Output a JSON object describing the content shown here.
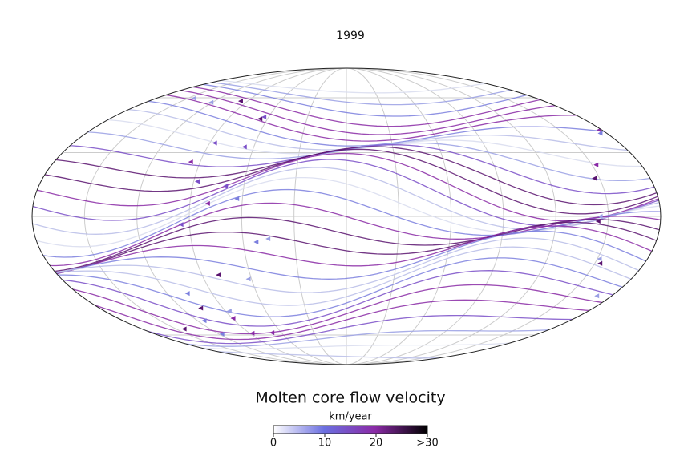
{
  "title": "1999",
  "colorbar": {
    "title": "Molten core flow velocity",
    "unit": "km/year",
    "range": [
      0,
      30
    ],
    "ticks": [
      0,
      10,
      20,
      {
        "value": 30,
        "label": ">30"
      }
    ]
  }
}
